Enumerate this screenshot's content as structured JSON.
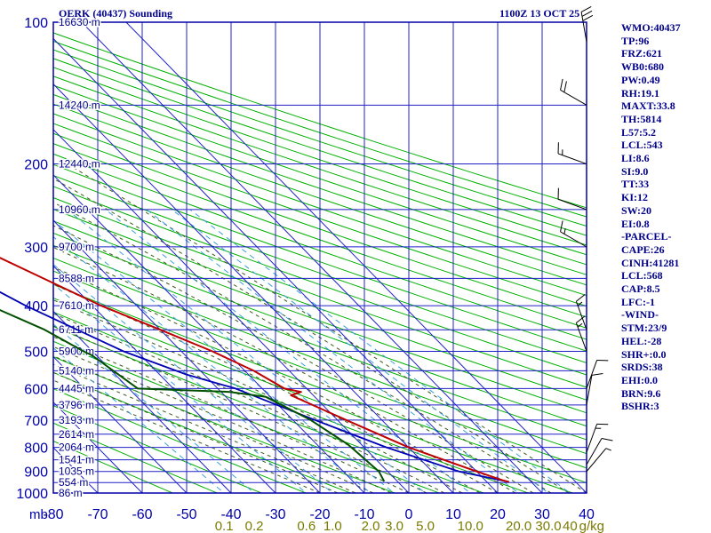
{
  "title": "OERK (40437) Sounding",
  "date": "1100Z 13 OCT 25",
  "colors": {
    "frame": "#0000aa",
    "grid": "#2020c8",
    "dry_adiabat": "#00b000",
    "moist_adiabat": "#3d5a1a",
    "mixing_ratio": "#3aa0dc",
    "temperature": "#c00000",
    "dewpoint": "#005000",
    "parcel": "#0000b4",
    "label": "#00008b",
    "mixing_label": "#7a7a00"
  },
  "chart_data": {
    "type": "skew-t",
    "x_range": [
      -80,
      40
    ],
    "p_range": [
      100,
      1000
    ],
    "pressure_labels": [
      "100",
      "200",
      "300",
      "400",
      "500",
      "600",
      "700",
      "800",
      "900",
      "1000"
    ],
    "pressure_levels": [
      100,
      200,
      300,
      400,
      500,
      600,
      700,
      800,
      900,
      1000
    ],
    "temp_labels": [
      "-80",
      "-70",
      "-60",
      "-50",
      "-40",
      "-30",
      "-20",
      "-10",
      "0",
      "10",
      "20",
      "30",
      "40"
    ],
    "temp_values": [
      -80,
      -70,
      -60,
      -50,
      -40,
      -30,
      -20,
      -10,
      0,
      10,
      20,
      30,
      40
    ],
    "pressure_unit": "mb",
    "mixing_ratio_unit": "g/kg",
    "mixing_ratio_labels": [
      "0.1",
      "0.2",
      "0.6",
      "1.0",
      "2.0",
      "3.0",
      "5.0",
      "10.0",
      "20.0",
      "30.0",
      "40"
    ],
    "mixing_ratio_values": [
      0.1,
      0.2,
      0.6,
      1.0,
      2.0,
      3.0,
      5.0,
      10.0,
      20.0,
      30.0,
      40
    ],
    "height_labels": [
      {
        "p": 100,
        "text": "16630 m"
      },
      {
        "p": 150,
        "text": "14240 m"
      },
      {
        "p": 200,
        "text": "12440 m"
      },
      {
        "p": 250,
        "text": "10960 m"
      },
      {
        "p": 300,
        "text": "9700 m"
      },
      {
        "p": 350,
        "text": "8588 m"
      },
      {
        "p": 400,
        "text": "7610 m"
      },
      {
        "p": 450,
        "text": "6711 m"
      },
      {
        "p": 500,
        "text": "5900 m"
      },
      {
        "p": 550,
        "text": "5140 m"
      },
      {
        "p": 600,
        "text": "4445 m"
      },
      {
        "p": 650,
        "text": "3796 m"
      },
      {
        "p": 700,
        "text": "3193 m"
      },
      {
        "p": 750,
        "text": "2614 m"
      },
      {
        "p": 800,
        "text": "2064 m"
      },
      {
        "p": 850,
        "text": "1541 m"
      },
      {
        "p": 900,
        "text": "1035 m"
      },
      {
        "p": 950,
        "text": "554 m"
      },
      {
        "p": 1000,
        "text": "86 m"
      }
    ],
    "temperature": [
      [
        100,
        -75
      ],
      [
        140,
        -69
      ],
      [
        170,
        -63
      ],
      [
        200,
        -58
      ],
      [
        250,
        -49
      ],
      [
        280,
        -44
      ],
      [
        300,
        -43
      ],
      [
        350,
        -35
      ],
      [
        400,
        -28
      ],
      [
        450,
        -20
      ],
      [
        500,
        -13
      ],
      [
        550,
        -8
      ],
      [
        600,
        -5
      ],
      [
        610,
        -2
      ],
      [
        620,
        -5
      ],
      [
        700,
        2
      ],
      [
        800,
        10
      ],
      [
        900,
        20
      ],
      [
        940,
        24
      ],
      [
        947,
        25
      ]
    ],
    "dewpoint": [
      [
        140,
        -80
      ],
      [
        165,
        -77
      ],
      [
        175,
        -69
      ],
      [
        185,
        -72
      ],
      [
        200,
        -73
      ],
      [
        300,
        -65
      ],
      [
        400,
        -53
      ],
      [
        450,
        -46
      ],
      [
        500,
        -42
      ],
      [
        510,
        -41
      ],
      [
        600,
        -38
      ],
      [
        610,
        -18
      ],
      [
        625,
        -11
      ],
      [
        700,
        -6
      ],
      [
        790,
        -3
      ],
      [
        900,
        -2
      ],
      [
        945,
        -3
      ]
    ],
    "parcel": [
      [
        160,
        -79
      ],
      [
        200,
        -72
      ],
      [
        300,
        -57
      ],
      [
        400,
        -45
      ],
      [
        500,
        -33
      ],
      [
        560,
        -24
      ],
      [
        600,
        -16
      ],
      [
        700,
        -5
      ],
      [
        800,
        5
      ],
      [
        900,
        16
      ],
      [
        947,
        25
      ]
    ],
    "wind_barbs": [
      {
        "p": 110,
        "dir": 350,
        "speed": 30
      },
      {
        "p": 150,
        "dir": 300,
        "speed": 20
      },
      {
        "p": 200,
        "dir": 290,
        "speed": 15
      },
      {
        "p": 250,
        "dir": 290,
        "speed": 10
      },
      {
        "p": 300,
        "dir": 300,
        "speed": 15
      },
      {
        "p": 450,
        "dir": 340,
        "speed": 15
      },
      {
        "p": 500,
        "dir": 340,
        "speed": 15
      },
      {
        "p": 600,
        "dir": 20,
        "speed": 10
      },
      {
        "p": 650,
        "dir": 10,
        "speed": 10
      },
      {
        "p": 820,
        "dir": 20,
        "speed": 15
      },
      {
        "p": 870,
        "dir": 30,
        "speed": 10
      },
      {
        "p": 900,
        "dir": 40,
        "speed": 5
      }
    ]
  },
  "indices": [
    "WMO:40437",
    "TP:96",
    "FRZ:621",
    "WB0:680",
    "PW:0.49",
    "RH:19.1",
    "MAXT:33.8",
    "TH:5814",
    "L57:5.2",
    "LCL:543",
    "LI:8.6",
    "SI:9.0",
    "TT:33",
    "KI:12",
    "SW:20",
    "EI:0.8",
    "-PARCEL-",
    "CAPE:26",
    "CINH:41281",
    "LCL:568",
    "CAP:8.5",
    "LFC:-1",
    "-WIND-",
    "STM:23/9",
    "HEL:-28",
    "SHR+:0.0",
    "SRDS:38",
    "EHI:0.0",
    "BRN:9.6",
    "BSHR:3"
  ]
}
